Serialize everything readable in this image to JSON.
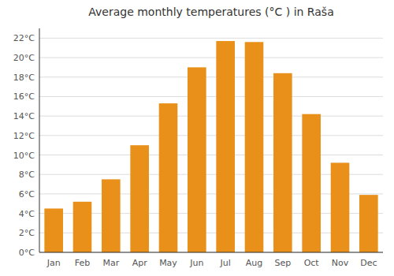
{
  "chart_data": {
    "type": "bar",
    "title": "Average monthly temperatures (°C ) in Raša",
    "categories": [
      "Jan",
      "Feb",
      "Mar",
      "Apr",
      "May",
      "Jun",
      "Jul",
      "Aug",
      "Sep",
      "Oct",
      "Nov",
      "Dec"
    ],
    "values": [
      4.5,
      5.2,
      7.5,
      11.0,
      15.3,
      19.0,
      21.7,
      21.6,
      18.4,
      14.2,
      9.2,
      5.9
    ],
    "color": "#E8901A",
    "ylim": [
      0,
      23
    ],
    "yticks": [
      {
        "value": 0,
        "label": "0°C"
      },
      {
        "value": 2,
        "label": "2°C"
      },
      {
        "value": 4,
        "label": "4°C"
      },
      {
        "value": 6,
        "label": "6°C"
      },
      {
        "value": 8,
        "label": "8°C"
      },
      {
        "value": 10,
        "label": "10°C"
      },
      {
        "value": 12,
        "label": "12°C"
      },
      {
        "value": 14,
        "label": "14°C"
      },
      {
        "value": 16,
        "label": "16°C"
      },
      {
        "value": 18,
        "label": "18°C"
      },
      {
        "value": 20,
        "label": "20°C"
      },
      {
        "value": 22,
        "label": "22°C"
      }
    ],
    "grid": true
  }
}
